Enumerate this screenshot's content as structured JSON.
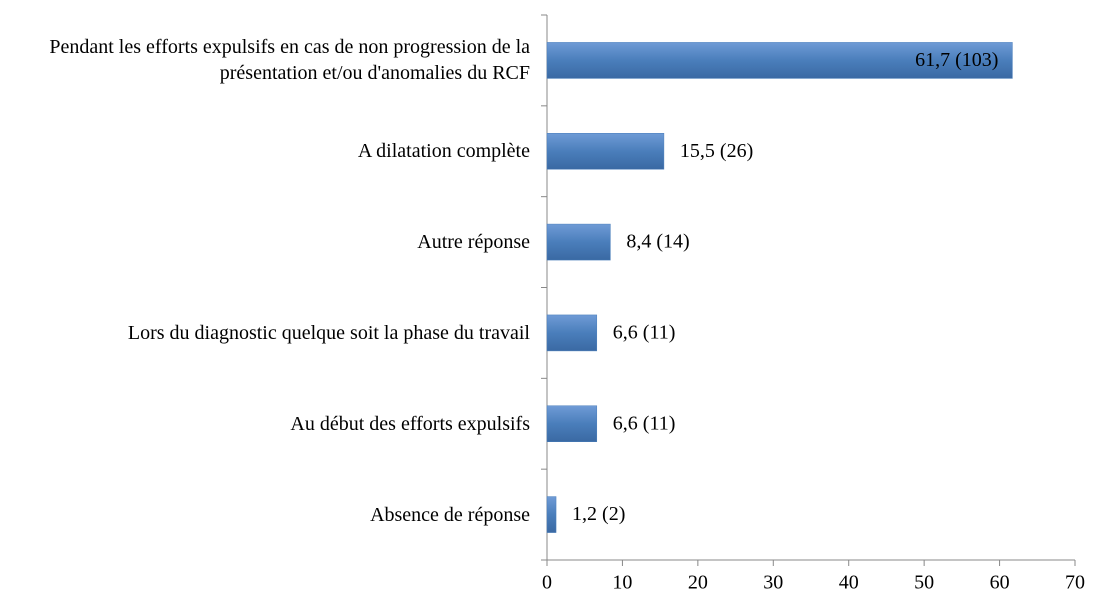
{
  "chart_data": {
    "type": "barh",
    "categories": [
      "Pendant les efforts expulsifs en cas de non progression de la présentation et/ou d'anomalies du RCF",
      "A dilatation complète",
      "Autre réponse",
      "Lors du diagnostic quelque soit la phase du travail",
      "Au début des efforts expulsifs",
      "Absence de réponse"
    ],
    "values": [
      61.7,
      15.5,
      8.4,
      6.6,
      6.6,
      1.2
    ],
    "value_labels": [
      "61,7 (103)",
      "15,5 (26)",
      "8,4 (14)",
      "6,6 (11)",
      "6,6 (11)",
      "1,2 (2)"
    ],
    "color": "#4a7ebb",
    "xlim": [
      0,
      70
    ],
    "xticks": [
      0,
      10,
      20,
      30,
      40,
      50,
      60,
      70
    ],
    "grid": false
  }
}
